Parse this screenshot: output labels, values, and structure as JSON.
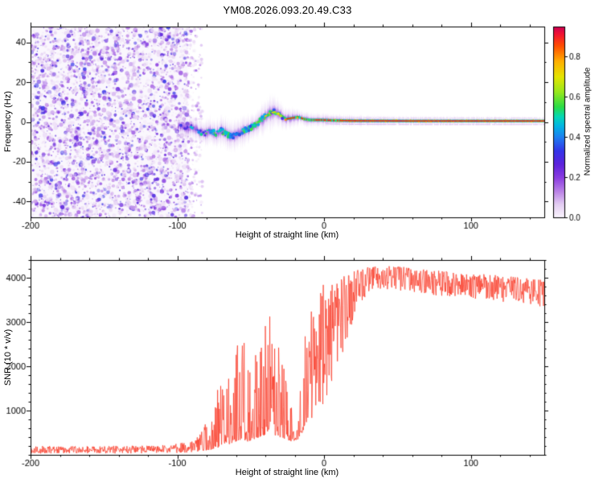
{
  "title": "YM08.2026.093.20.49.C33",
  "chart_data": [
    {
      "type": "heatmap",
      "title": "YM08.2026.093.20.49.C33",
      "xlabel": "Height of straight line (km)",
      "ylabel": "Frequency (Hz)",
      "xlim": [
        -200,
        150
      ],
      "ylim": [
        -48,
        48
      ],
      "xticks": [
        -200,
        -100,
        0,
        100
      ],
      "xtick_minor": 20,
      "yticks": [
        -40,
        -20,
        0,
        20,
        40
      ],
      "ytick_minor": 10,
      "grid": false,
      "colorbar": {
        "label": "Normalized spectral amplitude",
        "ticks": [
          0.0,
          0.2,
          0.4,
          0.6,
          0.8
        ],
        "range": [
          0,
          0.95
        ],
        "stops": [
          [
            0.0,
            "#faf5fd"
          ],
          [
            0.07,
            "#e3cdf2"
          ],
          [
            0.14,
            "#b97fe6"
          ],
          [
            0.21,
            "#8a3ce0"
          ],
          [
            0.28,
            "#5c22dc"
          ],
          [
            0.35,
            "#3434e8"
          ],
          [
            0.42,
            "#1e7cf0"
          ],
          [
            0.48,
            "#02b4e4"
          ],
          [
            0.53,
            "#04d8b4"
          ],
          [
            0.58,
            "#2adc46"
          ],
          [
            0.66,
            "#98e81c"
          ],
          [
            0.74,
            "#e6e400"
          ],
          [
            0.82,
            "#ffae00"
          ],
          [
            0.9,
            "#ff4e00"
          ],
          [
            0.96,
            "#f31430"
          ],
          [
            1.0,
            "#cc0052"
          ]
        ]
      },
      "noise_region": {
        "x_range": [
          -200,
          -93
        ],
        "amplitude_range": [
          0.03,
          0.35
        ]
      },
      "signal_track": [
        [
          -98,
          -2,
          0.3
        ],
        [
          -94,
          -3.5,
          0.32
        ],
        [
          -90,
          -2.5,
          0.34
        ],
        [
          -86,
          -4.5,
          0.36
        ],
        [
          -82,
          -6,
          0.38
        ],
        [
          -78,
          -4.5,
          0.4
        ],
        [
          -74,
          -6,
          0.42
        ],
        [
          -70,
          -4,
          0.45
        ],
        [
          -66,
          -6.5,
          0.47
        ],
        [
          -62,
          -7,
          0.5
        ],
        [
          -58,
          -5.5,
          0.52
        ],
        [
          -54,
          -4,
          0.54
        ],
        [
          -50,
          -3,
          0.56
        ],
        [
          -46,
          -1,
          0.58
        ],
        [
          -42,
          1.5,
          0.6
        ],
        [
          -38,
          4,
          0.63
        ],
        [
          -34,
          5.5,
          0.66
        ],
        [
          -30,
          3.5,
          0.7
        ],
        [
          -26,
          1.5,
          0.74
        ],
        [
          -22,
          2,
          0.78
        ],
        [
          -18,
          2.5,
          0.8
        ],
        [
          -14,
          1.5,
          0.84
        ],
        [
          -10,
          1,
          0.87
        ],
        [
          -6,
          1,
          0.9
        ],
        [
          -2,
          1,
          0.92
        ],
        [
          5,
          0.8,
          0.94
        ],
        [
          20,
          0.6,
          0.95
        ],
        [
          60,
          0.5,
          0.95
        ],
        [
          100,
          0.5,
          0.95
        ],
        [
          150,
          0.5,
          0.95
        ]
      ]
    },
    {
      "type": "line",
      "xlabel": "Height of straight line (km)",
      "ylabel": "SNR (10 * v/v)",
      "xlim": [
        -200,
        150
      ],
      "ylim": [
        0,
        4400
      ],
      "xticks": [
        -200,
        -100,
        0,
        100
      ],
      "xtick_minor": 20,
      "yticks": [
        1000,
        2000,
        3000,
        4000
      ],
      "ytick_minor": 200,
      "grid": false,
      "color": "#fa3b28",
      "series_name": "SNR",
      "snr_envelope": [
        [
          -200,
          30,
          200
        ],
        [
          -160,
          30,
          200
        ],
        [
          -120,
          30,
          210
        ],
        [
          -104,
          35,
          230
        ],
        [
          -96,
          45,
          280
        ],
        [
          -90,
          60,
          330
        ],
        [
          -85,
          80,
          480
        ],
        [
          -80,
          100,
          850
        ],
        [
          -76,
          120,
          1150
        ],
        [
          -72,
          150,
          1650
        ],
        [
          -68,
          200,
          1500
        ],
        [
          -64,
          250,
          2050
        ],
        [
          -60,
          300,
          2450
        ],
        [
          -56,
          350,
          2950
        ],
        [
          -52,
          300,
          2250
        ],
        [
          -48,
          350,
          2150
        ],
        [
          -44,
          400,
          2650
        ],
        [
          -40,
          450,
          2950
        ],
        [
          -37,
          500,
          3650
        ],
        [
          -34,
          450,
          2850
        ],
        [
          -30,
          400,
          2600
        ],
        [
          -26,
          350,
          1650
        ],
        [
          -22,
          300,
          1050
        ],
        [
          -18,
          350,
          950
        ],
        [
          -15,
          500,
          1850
        ],
        [
          -12,
          700,
          3100
        ],
        [
          -9,
          800,
          3350
        ],
        [
          -6,
          900,
          3600
        ],
        [
          -3,
          1000,
          3800
        ],
        [
          0,
          1200,
          3900
        ],
        [
          4,
          1500,
          3900
        ],
        [
          8,
          1800,
          3850
        ],
        [
          12,
          2200,
          4000
        ],
        [
          16,
          2600,
          4100
        ],
        [
          20,
          3000,
          4150
        ],
        [
          25,
          3400,
          4200
        ],
        [
          30,
          3650,
          4250
        ],
        [
          40,
          3700,
          4280
        ],
        [
          50,
          3720,
          4260
        ],
        [
          60,
          3680,
          4220
        ],
        [
          80,
          3580,
          4150
        ],
        [
          100,
          3520,
          4100
        ],
        [
          120,
          3460,
          4050
        ],
        [
          135,
          3420,
          4000
        ],
        [
          150,
          3340,
          3950
        ]
      ]
    }
  ]
}
